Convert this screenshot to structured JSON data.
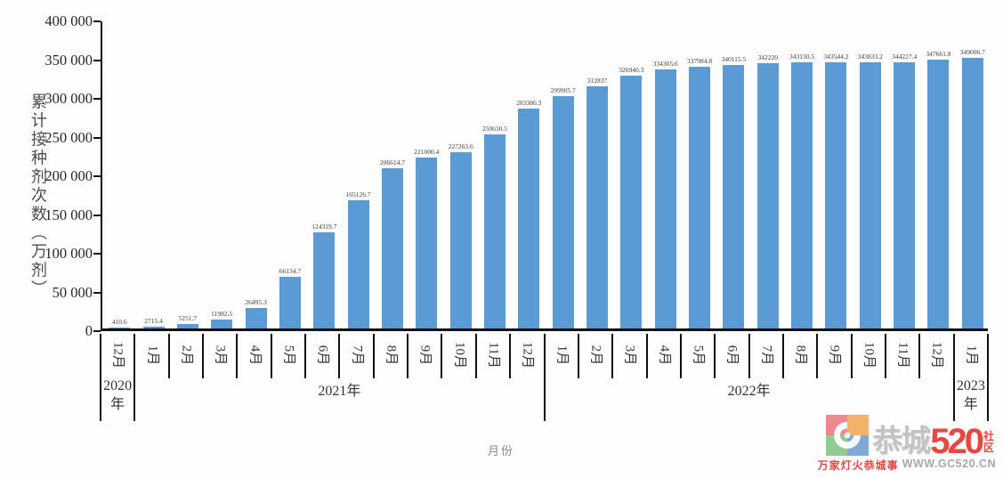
{
  "chart_data": {
    "type": "bar",
    "title": "",
    "xlabel": "月份",
    "ylabel": "累计接种剂次数（万剂）",
    "ylim": [
      0,
      400000
    ],
    "y_tick_labels": [
      "0",
      "50 000",
      "100 000",
      "150 000",
      "200 000",
      "250 000",
      "300 000",
      "350 000",
      "400 000"
    ],
    "grid": false,
    "legend_position": "none",
    "bar_color": "#5B9BD5",
    "categories": [
      "12月",
      "1月",
      "2月",
      "3月",
      "4月",
      "5月",
      "6月",
      "7月",
      "8月",
      "9月",
      "10月",
      "11月",
      "12月",
      "1月",
      "2月",
      "3月",
      "4月",
      "5月",
      "6月",
      "7月",
      "8月",
      "9月",
      "10月",
      "11月",
      "12月",
      "1月"
    ],
    "values": [
      410.6,
      2715.4,
      5251.7,
      11982.5,
      26495.3,
      66134.7,
      124319.7,
      165126.7,
      206614.7,
      221000.4,
      227263.6,
      250630.5,
      283386.3,
      299905.7,
      312837,
      326940.3,
      334305.6,
      337984.8,
      340115.5,
      342220,
      343130.5,
      343544.2,
      343833.2,
      344227.4,
      347661.8,
      349006.7
    ],
    "value_labels": [
      "410.6",
      "2715.4",
      "5251.7",
      "11982.5",
      "26495.3",
      "66134.7",
      "124319.7",
      "165126.7",
      "206614.7",
      "221000.4",
      "227263.6",
      "250630.5",
      "283386.3",
      "299905.7",
      "312837",
      "326940.3",
      "334305.6",
      "337984.8",
      "340115.5",
      "342220",
      "343130.5",
      "343544.2",
      "343833.2",
      "344227.4",
      "347661.8",
      "349006.7"
    ],
    "year_groups": [
      {
        "label": "2020年",
        "start": 0,
        "count": 1
      },
      {
        "label": "2021年",
        "start": 1,
        "count": 12
      },
      {
        "label": "2022年",
        "start": 13,
        "count": 12
      },
      {
        "label": "2023年",
        "start": 25,
        "count": 1
      }
    ]
  },
  "watermark": {
    "logo": "gc520-logo",
    "brand": "恭城",
    "brand_number": "520",
    "community": "社区",
    "tagline": "万家灯火恭城事",
    "url": "WWW.GC520.CN",
    "logo_colors": {
      "top_left": "#ec7f8b",
      "top_right": "#f3ab5e",
      "bottom_left": "#86c78a",
      "bottom_right": "#74a3d6"
    },
    "accent_red": "#e6382e",
    "gray": "#a0a0a0"
  }
}
